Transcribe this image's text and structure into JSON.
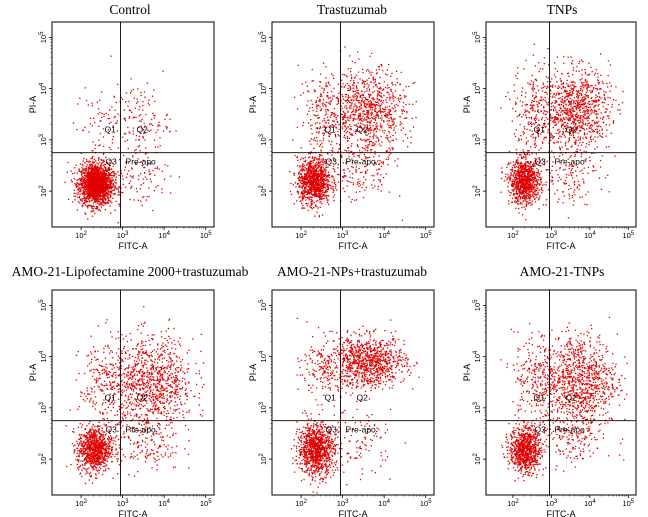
{
  "chart_data": [
    {
      "type": "scatter",
      "title": "Control",
      "xlabel": "FITC-A",
      "ylabel": "PI-A",
      "x_ticks": [
        "10^2",
        "10^3",
        "10^4",
        "10^5"
      ],
      "y_ticks": [
        "10^2",
        "10^3",
        "10^4",
        "10^5"
      ],
      "xlim_log10": [
        1.3,
        5.2
      ],
      "ylim_log10": [
        1.3,
        5.3
      ],
      "gate_x_log10": 2.95,
      "gate_y_log10": 2.75,
      "quadrant_labels": [
        "Q1",
        "Q2",
        "Q3",
        "Pre-apo"
      ],
      "populations": [
        {
          "name": "viable",
          "x_log10": 2.35,
          "y_log10": 2.15,
          "spread_x": 0.2,
          "spread_y": 0.2,
          "fraction": 0.86
        },
        {
          "name": "early-apoptotic",
          "x_log10": 3.3,
          "y_log10": 2.3,
          "spread_x": 0.4,
          "spread_y": 0.3,
          "fraction": 0.05
        },
        {
          "name": "late-apoptotic",
          "x_log10": 3.4,
          "y_log10": 3.4,
          "spread_x": 0.35,
          "spread_y": 0.35,
          "fraction": 0.06
        },
        {
          "name": "necrotic",
          "x_log10": 2.4,
          "y_log10": 3.3,
          "spread_x": 0.3,
          "spread_y": 0.4,
          "fraction": 0.03
        }
      ]
    },
    {
      "type": "scatter",
      "title": "Trastuzumab",
      "xlabel": "FITC-A",
      "ylabel": "PI-A",
      "x_ticks": [
        "10^2",
        "10^3",
        "10^4",
        "10^5"
      ],
      "y_ticks": [
        "10^2",
        "10^3",
        "10^4",
        "10^5"
      ],
      "xlim_log10": [
        1.3,
        5.2
      ],
      "ylim_log10": [
        1.3,
        5.3
      ],
      "gate_x_log10": 2.95,
      "gate_y_log10": 2.75,
      "quadrant_labels": [
        "Q1",
        "Q2",
        "Q3",
        "Pre-apo"
      ],
      "populations": [
        {
          "name": "viable",
          "x_log10": 2.3,
          "y_log10": 2.2,
          "spread_x": 0.2,
          "spread_y": 0.22,
          "fraction": 0.45
        },
        {
          "name": "early-apoptotic",
          "x_log10": 3.4,
          "y_log10": 2.35,
          "spread_x": 0.4,
          "spread_y": 0.3,
          "fraction": 0.06
        },
        {
          "name": "late-apoptotic",
          "x_log10": 3.6,
          "y_log10": 3.55,
          "spread_x": 0.45,
          "spread_y": 0.42,
          "fraction": 0.39
        },
        {
          "name": "necrotic",
          "x_log10": 2.55,
          "y_log10": 3.5,
          "spread_x": 0.3,
          "spread_y": 0.45,
          "fraction": 0.1
        }
      ]
    },
    {
      "type": "scatter",
      "title": "TNPs",
      "xlabel": "FITC-A",
      "ylabel": "PI-A",
      "x_ticks": [
        "10^2",
        "10^3",
        "10^4",
        "10^5"
      ],
      "y_ticks": [
        "10^2",
        "10^3",
        "10^4",
        "10^5"
      ],
      "xlim_log10": [
        1.3,
        5.2
      ],
      "ylim_log10": [
        1.3,
        5.3
      ],
      "gate_x_log10": 2.95,
      "gate_y_log10": 2.75,
      "quadrant_labels": [
        "Q1",
        "Q2",
        "Q3",
        "Pre-apo"
      ],
      "populations": [
        {
          "name": "viable",
          "x_log10": 2.3,
          "y_log10": 2.2,
          "spread_x": 0.2,
          "spread_y": 0.22,
          "fraction": 0.42
        },
        {
          "name": "early-apoptotic",
          "x_log10": 3.4,
          "y_log10": 2.35,
          "spread_x": 0.4,
          "spread_y": 0.3,
          "fraction": 0.06
        },
        {
          "name": "late-apoptotic",
          "x_log10": 3.6,
          "y_log10": 3.6,
          "spread_x": 0.45,
          "spread_y": 0.4,
          "fraction": 0.42
        },
        {
          "name": "necrotic",
          "x_log10": 2.55,
          "y_log10": 3.55,
          "spread_x": 0.3,
          "spread_y": 0.45,
          "fraction": 0.1
        }
      ]
    },
    {
      "type": "scatter",
      "title": "AMO-21-Lipofectamine 2000+trastuzumab",
      "xlabel": "FITC-A",
      "ylabel": "PI-A",
      "x_ticks": [
        "10^2",
        "10^3",
        "10^4",
        "10^5"
      ],
      "y_ticks": [
        "10^2",
        "10^3",
        "10^4",
        "10^5"
      ],
      "xlim_log10": [
        1.3,
        5.2
      ],
      "ylim_log10": [
        1.3,
        5.3
      ],
      "gate_x_log10": 2.95,
      "gate_y_log10": 2.75,
      "quadrant_labels": [
        "Q1",
        "Q2",
        "Q3",
        "Pre-apo"
      ],
      "populations": [
        {
          "name": "viable",
          "x_log10": 2.3,
          "y_log10": 2.2,
          "spread_x": 0.2,
          "spread_y": 0.22,
          "fraction": 0.4
        },
        {
          "name": "early-apoptotic",
          "x_log10": 3.5,
          "y_log10": 2.35,
          "spread_x": 0.45,
          "spread_y": 0.3,
          "fraction": 0.08
        },
        {
          "name": "late-apoptotic",
          "x_log10": 3.7,
          "y_log10": 3.5,
          "spread_x": 0.5,
          "spread_y": 0.45,
          "fraction": 0.42
        },
        {
          "name": "necrotic",
          "x_log10": 2.55,
          "y_log10": 3.5,
          "spread_x": 0.3,
          "spread_y": 0.45,
          "fraction": 0.1
        }
      ]
    },
    {
      "type": "scatter",
      "title": "AMO-21-NPs+trastuzumab",
      "xlabel": "FITC-A",
      "ylabel": "PI-A",
      "x_ticks": [
        "10^2",
        "10^3",
        "10^4",
        "10^5"
      ],
      "y_ticks": [
        "10^2",
        "10^3",
        "10^4",
        "10^5"
      ],
      "xlim_log10": [
        1.3,
        5.2
      ],
      "ylim_log10": [
        1.3,
        5.3
      ],
      "gate_x_log10": 2.95,
      "gate_y_log10": 2.75,
      "quadrant_labels": [
        "Q1",
        "Q2",
        "Q3",
        "Pre-apo"
      ],
      "populations": [
        {
          "name": "viable",
          "x_log10": 2.35,
          "y_log10": 2.2,
          "spread_x": 0.22,
          "spread_y": 0.25,
          "fraction": 0.45
        },
        {
          "name": "early-apoptotic",
          "x_log10": 3.4,
          "y_log10": 2.35,
          "spread_x": 0.4,
          "spread_y": 0.3,
          "fraction": 0.05
        },
        {
          "name": "late-apoptotic",
          "x_log10": 3.6,
          "y_log10": 3.9,
          "spread_x": 0.45,
          "spread_y": 0.25,
          "fraction": 0.42
        },
        {
          "name": "necrotic",
          "x_log10": 2.6,
          "y_log10": 3.8,
          "spread_x": 0.3,
          "spread_y": 0.3,
          "fraction": 0.08
        }
      ]
    },
    {
      "type": "scatter",
      "title": "AMO-21-TNPs",
      "xlabel": "FITC-A",
      "ylabel": "PI-A",
      "x_ticks": [
        "10^2",
        "10^3",
        "10^4",
        "10^5"
      ],
      "y_ticks": [
        "10^2",
        "10^3",
        "10^4",
        "10^5"
      ],
      "xlim_log10": [
        1.3,
        5.2
      ],
      "ylim_log10": [
        1.3,
        5.3
      ],
      "gate_x_log10": 2.95,
      "gate_y_log10": 2.75,
      "quadrant_labels": [
        "Q1",
        "Q2",
        "Q3",
        "Pre-apo"
      ],
      "populations": [
        {
          "name": "viable",
          "x_log10": 2.3,
          "y_log10": 2.2,
          "spread_x": 0.2,
          "spread_y": 0.22,
          "fraction": 0.38
        },
        {
          "name": "early-apoptotic",
          "x_log10": 3.5,
          "y_log10": 2.4,
          "spread_x": 0.45,
          "spread_y": 0.3,
          "fraction": 0.08
        },
        {
          "name": "late-apoptotic",
          "x_log10": 3.7,
          "y_log10": 3.55,
          "spread_x": 0.5,
          "spread_y": 0.45,
          "fraction": 0.44
        },
        {
          "name": "necrotic",
          "x_log10": 2.55,
          "y_log10": 3.55,
          "spread_x": 0.3,
          "spread_y": 0.45,
          "fraction": 0.1
        }
      ]
    }
  ]
}
